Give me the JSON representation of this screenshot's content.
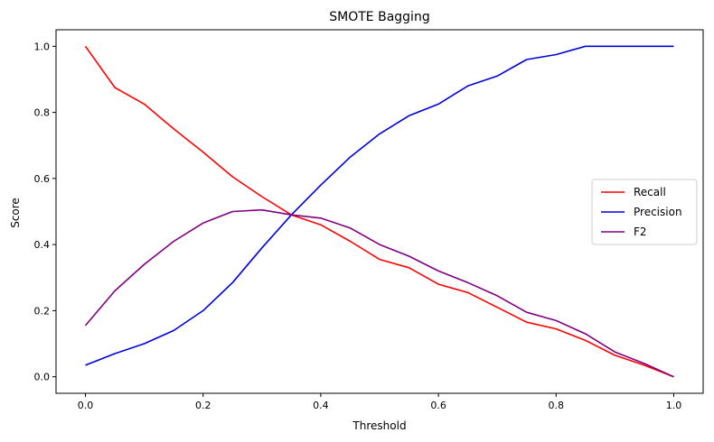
{
  "chart_data": {
    "type": "line",
    "title": "SMOTE Bagging",
    "xlabel": "Threshold",
    "ylabel": "Score",
    "xlim": [
      -0.05,
      1.05
    ],
    "ylim": [
      -0.05,
      1.05
    ],
    "xticks": [
      0.0,
      0.2,
      0.4,
      0.6,
      0.8,
      1.0
    ],
    "xtick_labels": [
      "0.0",
      "0.2",
      "0.4",
      "0.6",
      "0.8",
      "1.0"
    ],
    "yticks": [
      0.0,
      0.2,
      0.4,
      0.6,
      0.8,
      1.0
    ],
    "ytick_labels": [
      "0.0",
      "0.2",
      "0.4",
      "0.6",
      "0.8",
      "1.0"
    ],
    "grid": false,
    "legend_position": "center-right",
    "x": [
      0.0,
      0.05,
      0.1,
      0.15,
      0.2,
      0.25,
      0.3,
      0.35,
      0.4,
      0.45,
      0.5,
      0.55,
      0.6,
      0.65,
      0.7,
      0.75,
      0.8,
      0.85,
      0.9,
      0.95,
      1.0
    ],
    "series": [
      {
        "name": "Recall",
        "color": "#ff0000",
        "values": [
          1.0,
          0.875,
          0.825,
          0.75,
          0.68,
          0.605,
          0.545,
          0.49,
          0.46,
          0.41,
          0.355,
          0.33,
          0.28,
          0.255,
          0.21,
          0.165,
          0.145,
          0.11,
          0.065,
          0.035,
          0.0
        ]
      },
      {
        "name": "Precision",
        "color": "#0000dd",
        "values": [
          0.035,
          0.07,
          0.1,
          0.14,
          0.2,
          0.285,
          0.39,
          0.49,
          0.58,
          0.665,
          0.735,
          0.79,
          0.825,
          0.88,
          0.91,
          0.96,
          0.975,
          1.0,
          1.0,
          1.0,
          1.0
        ]
      },
      {
        "name": "F2",
        "color": "#800080",
        "values": [
          0.155,
          0.26,
          0.34,
          0.41,
          0.465,
          0.5,
          0.505,
          0.49,
          0.48,
          0.45,
          0.4,
          0.365,
          0.32,
          0.285,
          0.245,
          0.195,
          0.17,
          0.13,
          0.075,
          0.04,
          0.0
        ]
      }
    ]
  }
}
